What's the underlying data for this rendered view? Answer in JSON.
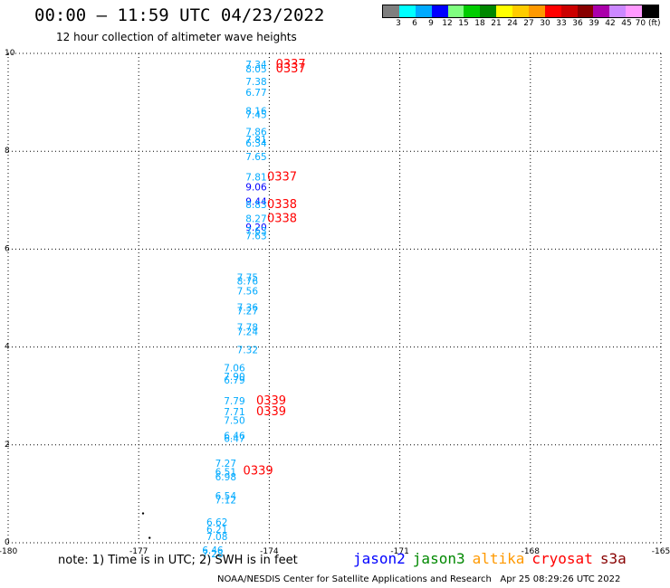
{
  "header": {
    "title": "00:00 — 11:59 UTC 04/23/2022",
    "subtitle": "12 hour collection of altimeter wave heights"
  },
  "colorbar": {
    "colors": [
      "#7f7f7f",
      "#00ffff",
      "#00aaff",
      "#0000ff",
      "#80ff80",
      "#00cc00",
      "#008800",
      "#ffff00",
      "#ffcc00",
      "#ff9900",
      "#ff0000",
      "#cc0000",
      "#880000",
      "#aa00aa",
      "#cc88ff",
      "#ff99ff",
      "#000000"
    ],
    "labels": [
      "3",
      "6",
      "9",
      "12",
      "15",
      "18",
      "21",
      "24",
      "27",
      "30",
      "33",
      "36",
      "39",
      "42",
      "45",
      "70 (ft)"
    ]
  },
  "chart_data": {
    "type": "scatter",
    "xlim": [
      -180,
      -165
    ],
    "ylim": [
      0,
      10
    ],
    "x_ticks": [
      "-180",
      "-177",
      "-174",
      "-171",
      "-168",
      "-165"
    ],
    "y_ticks": [
      "0",
      "2",
      "4",
      "6",
      "8",
      "10"
    ],
    "grid": true,
    "swh_labels": [
      {
        "x": -174.3,
        "y": 9.7,
        "text": "7.34",
        "color": "#00aaff"
      },
      {
        "x": -174.3,
        "y": 9.61,
        "text": "8.05",
        "color": "#00aaff"
      },
      {
        "x": -174.3,
        "y": 9.35,
        "text": "7.38",
        "color": "#00aaff"
      },
      {
        "x": -174.3,
        "y": 9.13,
        "text": "6.77",
        "color": "#00aaff"
      },
      {
        "x": -174.3,
        "y": 8.75,
        "text": "8.16",
        "color": "#00aaff"
      },
      {
        "x": -174.3,
        "y": 8.68,
        "text": "7.45",
        "color": "#00aaff"
      },
      {
        "x": -174.3,
        "y": 8.33,
        "text": "7.86",
        "color": "#00aaff"
      },
      {
        "x": -174.3,
        "y": 8.17,
        "text": "7.81",
        "color": "#00aaff"
      },
      {
        "x": -174.3,
        "y": 8.1,
        "text": "6.34",
        "color": "#00aaff"
      },
      {
        "x": -174.3,
        "y": 7.82,
        "text": "7.65",
        "color": "#00aaff"
      },
      {
        "x": -174.3,
        "y": 7.4,
        "text": "7.81",
        "color": "#00aaff"
      },
      {
        "x": -174.3,
        "y": 7.2,
        "text": "9.06",
        "color": "#0000ff"
      },
      {
        "x": -174.3,
        "y": 6.9,
        "text": "9.44",
        "color": "#0000ff"
      },
      {
        "x": -174.3,
        "y": 6.84,
        "text": "8.83",
        "color": "#00aaff"
      },
      {
        "x": -174.3,
        "y": 6.55,
        "text": "8.27",
        "color": "#00aaff"
      },
      {
        "x": -174.3,
        "y": 6.38,
        "text": "9.20",
        "color": "#0000ff"
      },
      {
        "x": -174.3,
        "y": 6.3,
        "text": "7.63",
        "color": "#00aaff"
      },
      {
        "x": -174.3,
        "y": 6.2,
        "text": "7.63",
        "color": "#00aaff"
      },
      {
        "x": -174.5,
        "y": 5.35,
        "text": "7.75",
        "color": "#00aaff"
      },
      {
        "x": -174.5,
        "y": 5.28,
        "text": "8.76",
        "color": "#00aaff"
      },
      {
        "x": -174.5,
        "y": 5.07,
        "text": "7.56",
        "color": "#00aaff"
      },
      {
        "x": -174.5,
        "y": 4.74,
        "text": "7.36",
        "color": "#00aaff"
      },
      {
        "x": -174.5,
        "y": 4.67,
        "text": "7.27",
        "color": "#00aaff"
      },
      {
        "x": -174.5,
        "y": 4.33,
        "text": "7.78",
        "color": "#00aaff"
      },
      {
        "x": -174.5,
        "y": 4.24,
        "text": "7.24",
        "color": "#00aaff"
      },
      {
        "x": -174.5,
        "y": 3.87,
        "text": "7.32",
        "color": "#00aaff"
      },
      {
        "x": -174.8,
        "y": 3.5,
        "text": "7.06",
        "color": "#00aaff"
      },
      {
        "x": -174.8,
        "y": 3.33,
        "text": "7.90",
        "color": "#00aaff"
      },
      {
        "x": -174.8,
        "y": 3.25,
        "text": "6.79",
        "color": "#00aaff"
      },
      {
        "x": -174.8,
        "y": 2.83,
        "text": "7.79",
        "color": "#00aaff"
      },
      {
        "x": -174.8,
        "y": 2.61,
        "text": "7.71",
        "color": "#00aaff"
      },
      {
        "x": -174.8,
        "y": 2.43,
        "text": "7.50",
        "color": "#00aaff"
      },
      {
        "x": -174.8,
        "y": 2.12,
        "text": "6.46",
        "color": "#00aaff"
      },
      {
        "x": -174.8,
        "y": 2.06,
        "text": "6.47",
        "color": "#00aaff"
      },
      {
        "x": -175.0,
        "y": 1.55,
        "text": "7.27",
        "color": "#00aaff"
      },
      {
        "x": -175.0,
        "y": 1.38,
        "text": "6.51",
        "color": "#00aaff"
      },
      {
        "x": -175.0,
        "y": 1.28,
        "text": "6.98",
        "color": "#00aaff"
      },
      {
        "x": -175.0,
        "y": 0.89,
        "text": "6.54",
        "color": "#00aaff"
      },
      {
        "x": -175.0,
        "y": 0.8,
        "text": "7.12",
        "color": "#00aaff"
      },
      {
        "x": -175.2,
        "y": 0.35,
        "text": "6.62",
        "color": "#00aaff"
      },
      {
        "x": -175.2,
        "y": 0.2,
        "text": "6.21",
        "color": "#00aaff"
      },
      {
        "x": -175.2,
        "y": 0.06,
        "text": "7.08",
        "color": "#00aaff"
      },
      {
        "x": -175.3,
        "y": -0.22,
        "text": "6.46",
        "color": "#00aaff"
      },
      {
        "x": -175.3,
        "y": -0.3,
        "text": "7.28",
        "color": "#00aaff"
      }
    ],
    "time_labels": [
      {
        "x": -173.85,
        "y": 9.7,
        "text": "0337"
      },
      {
        "x": -173.85,
        "y": 9.61,
        "text": "0337"
      },
      {
        "x": -174.05,
        "y": 7.4,
        "text": "0337"
      },
      {
        "x": -174.05,
        "y": 6.84,
        "text": "0338"
      },
      {
        "x": -174.05,
        "y": 6.55,
        "text": "0338"
      },
      {
        "x": -174.3,
        "y": 2.83,
        "text": "0339"
      },
      {
        "x": -174.3,
        "y": 2.61,
        "text": "0339"
      },
      {
        "x": -174.6,
        "y": 1.4,
        "text": "0339"
      }
    ],
    "points": [
      {
        "x": -176.9,
        "y": 0.6
      },
      {
        "x": -176.75,
        "y": 0.1
      }
    ],
    "legend": [
      {
        "name": "jason2",
        "color": "#0000ff"
      },
      {
        "name": "jason3",
        "color": "#008800"
      },
      {
        "name": "altika",
        "color": "#ff9900"
      },
      {
        "name": "cryosat",
        "color": "#ff0000"
      },
      {
        "name": "s3a",
        "color": "#880000"
      }
    ]
  },
  "footer": {
    "note": "note: 1) Time is in UTC; 2) SWH is in feet",
    "credit": "NOAA/NESDIS Center for Satellite Applications and Research   Apr 25 08:29:26 UTC 2022"
  }
}
